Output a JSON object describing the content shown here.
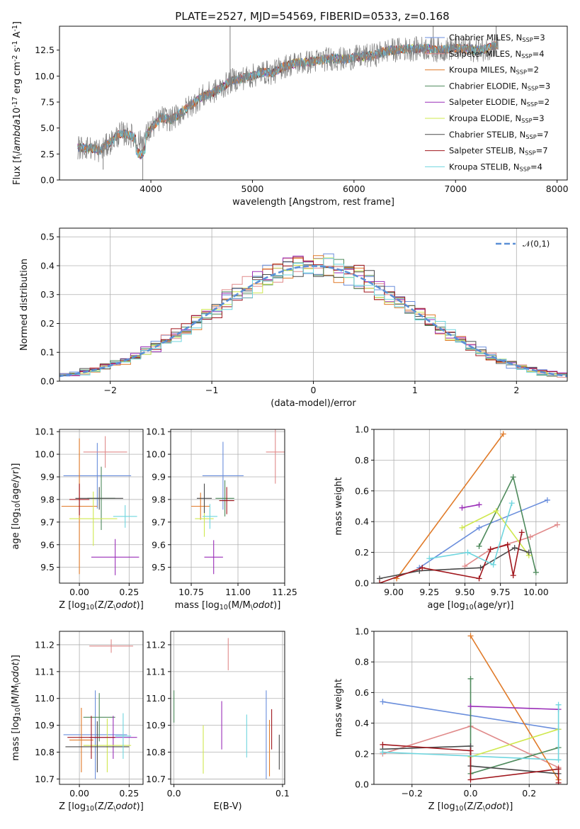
{
  "figure": {
    "title": "PLATE=2527, MJD=54569, FIBERID=0533, z=0.168"
  },
  "series_styles": [
    {
      "name": "Chabrier MILES, N$_{SSP}$=3",
      "label_html": "Chabrier MILES, N<sub>SSP</sub>=3",
      "color": "#6a8edc"
    },
    {
      "name": "Salpeter MILES, N$_{SSP}$=4",
      "label_html": "Salpeter MILES, N<sub>SSP</sub>=4",
      "color": "#e08a8a"
    },
    {
      "name": "Kroupa MILES, N$_{SSP}$=2",
      "label_html": "Kroupa MILES, N<sub>SSP</sub>=2",
      "color": "#e07a28"
    },
    {
      "name": "Chabrier ELODIE, N$_{SSP}$=3",
      "label_html": "Chabrier ELODIE, N<sub>SSP</sub>=3",
      "color": "#4e8a5c"
    },
    {
      "name": "Salpeter ELODIE, N$_{SSP}$=2",
      "label_html": "Salpeter ELODIE, N<sub>SSP</sub>=2",
      "color": "#9a2eb8"
    },
    {
      "name": "Kroupa ELODIE, N$_{SSP}$=3",
      "label_html": "Kroupa ELODIE, N<sub>SSP</sub>=3",
      "color": "#cfe84e"
    },
    {
      "name": "Chabrier STELIB, N$_{SSP}$=7",
      "label_html": "Chabrier STELIB, N<sub>SSP</sub>=7",
      "color": "#4a4a4a"
    },
    {
      "name": "Salpeter STELIB, N$_{SSP}$=7",
      "label_html": "Salpeter STELIB, N<sub>SSP</sub>=7",
      "color": "#a0161c"
    },
    {
      "name": "Kroupa STELIB, N$_{SSP}$=4",
      "label_html": "Kroupa STELIB, N<sub>SSP</sub>=4",
      "color": "#6fd6df"
    }
  ],
  "chart_data": [
    {
      "id": "spectrum",
      "type": "line",
      "title": "PLATE=2527, MJD=54569, FIBERID=0533, z=0.168",
      "xlabel": "wavelength [Angstrom, rest frame]",
      "ylabel": "Flux [f$_\\lambda$10$^{-17}$ erg cm$^{-2}$ s$^{-1}$ A$^{-1}$]",
      "xlim": [
        3100,
        8100
      ],
      "ylim": [
        0,
        14.8
      ],
      "xticks": [
        4000,
        5000,
        6000,
        7000,
        8000
      ],
      "yticks": [
        0.0,
        2.5,
        5.0,
        7.5,
        10.0,
        12.5
      ],
      "data_color": "#808080",
      "data_label": "",
      "spikes": [
        {
          "x": 4780,
          "y": 14.8
        },
        {
          "x": 6780,
          "y": 14.8
        },
        {
          "x": 7400,
          "y": 14.8
        },
        {
          "x": 3530,
          "y": 1.0
        },
        {
          "x": 3920,
          "y": 0.0
        }
      ],
      "continuum": [
        [
          3280,
          3.1
        ],
        [
          3400,
          3.1
        ],
        [
          3500,
          2.8
        ],
        [
          3600,
          3.6
        ],
        [
          3700,
          4.5
        ],
        [
          3800,
          4.3
        ],
        [
          3900,
          3.6
        ],
        [
          4000,
          4.9
        ],
        [
          4100,
          6.0
        ],
        [
          4200,
          5.8
        ],
        [
          4300,
          6.5
        ],
        [
          4400,
          7.2
        ],
        [
          4500,
          8.0
        ],
        [
          4600,
          8.4
        ],
        [
          4700,
          8.9
        ],
        [
          4800,
          9.6
        ],
        [
          4900,
          9.8
        ],
        [
          5000,
          10.0
        ],
        [
          5100,
          10.4
        ],
        [
          5200,
          10.3
        ],
        [
          5300,
          10.9
        ],
        [
          5400,
          11.2
        ],
        [
          5500,
          11.3
        ],
        [
          5600,
          11.4
        ],
        [
          5700,
          11.6
        ],
        [
          5800,
          11.7
        ],
        [
          5900,
          11.6
        ],
        [
          6000,
          11.8
        ],
        [
          6100,
          11.9
        ],
        [
          6200,
          12.0
        ],
        [
          6300,
          12.4
        ],
        [
          6400,
          12.5
        ],
        [
          6500,
          12.6
        ],
        [
          6600,
          12.6
        ],
        [
          6700,
          12.7
        ],
        [
          6800,
          12.5
        ],
        [
          6900,
          12.6
        ],
        [
          7000,
          12.7
        ],
        [
          7100,
          12.6
        ],
        [
          7200,
          12.5
        ],
        [
          7300,
          12.6
        ],
        [
          7400,
          13.0
        ]
      ],
      "legend_position": "right"
    },
    {
      "id": "residuals",
      "type": "line",
      "xlabel": "(data-model)/error",
      "ylabel": "Normed distribution",
      "xlim": [
        -2.5,
        2.5
      ],
      "ylim": [
        0,
        0.53
      ],
      "xticks": [
        -2,
        -1,
        0,
        1,
        2
      ],
      "yticks": [
        0.0,
        0.1,
        0.2,
        0.3,
        0.4,
        0.5
      ],
      "legend": "$\\mathcal{N}(0,1)$",
      "legend_position": "top-right",
      "gaussian_color": "#5b8fd6",
      "bin_width": 0.1,
      "grid": true
    },
    {
      "id": "age-vs-Z",
      "type": "scatter",
      "xlabel": "Z [log$_{10}$(Z/Z$_\\odot$)]",
      "ylabel": "age  [log$_{10}$(age/yr)]",
      "xlim": [
        -0.1,
        0.32
      ],
      "ylim": [
        9.43,
        10.11
      ],
      "xticks": [
        0.0,
        0.25
      ],
      "yticks": [
        9.5,
        9.6,
        9.7,
        9.8,
        9.9,
        10.0,
        10.1
      ],
      "points": [
        {
          "x": 0.09,
          "y": 9.905,
          "xerr": 0.17,
          "yerr": 0.145,
          "c": 0
        },
        {
          "x": 0.13,
          "y": 10.01,
          "xerr": 0.11,
          "yerr": 0.07,
          "c": 1
        },
        {
          "x": 0.0,
          "y": 9.77,
          "xerr": 0.09,
          "yerr": 0.3,
          "c": 2
        },
        {
          "x": 0.11,
          "y": 9.805,
          "xerr": 0.07,
          "yerr": 0.14,
          "c": 3
        },
        {
          "x": 0.18,
          "y": 9.545,
          "xerr": 0.12,
          "yerr": 0.08,
          "c": 4
        },
        {
          "x": 0.07,
          "y": 9.715,
          "xerr": 0.12,
          "yerr": 0.12,
          "c": 5
        },
        {
          "x": 0.1,
          "y": 9.805,
          "xerr": 0.12,
          "yerr": 0.05,
          "c": 6
        },
        {
          "x": 0.0,
          "y": 9.8,
          "xerr": 0.05,
          "yerr": 0.07,
          "c": 7
        },
        {
          "x": 0.23,
          "y": 9.725,
          "xerr": 0.06,
          "yerr": 0.05,
          "c": 8
        }
      ]
    },
    {
      "id": "age-vs-mass",
      "type": "scatter",
      "xlabel": "mass [log$_{10}$(M/M$_\\odot$)]",
      "ylabel": "",
      "xlim": [
        10.64,
        11.25
      ],
      "ylim": [
        9.43,
        10.11
      ],
      "xticks": [
        10.75,
        11.0,
        11.25
      ],
      "yticks": [
        9.5,
        9.6,
        9.7,
        9.8,
        9.9,
        10.0,
        10.1
      ],
      "points": [
        {
          "x": 10.92,
          "y": 9.905,
          "xerr": 0.11,
          "yerr": 0.15,
          "c": 0
        },
        {
          "x": 11.2,
          "y": 10.01,
          "xerr": 0.05,
          "yerr": 0.14,
          "c": 1
        },
        {
          "x": 10.8,
          "y": 9.77,
          "xerr": 0.05,
          "yerr": 0.06,
          "c": 2
        },
        {
          "x": 10.93,
          "y": 9.805,
          "xerr": 0.05,
          "yerr": 0.08,
          "c": 3
        },
        {
          "x": 10.87,
          "y": 9.545,
          "xerr": 0.05,
          "yerr": 0.075,
          "c": 4
        },
        {
          "x": 10.82,
          "y": 9.715,
          "xerr": 0.05,
          "yerr": 0.08,
          "c": 5
        },
        {
          "x": 10.82,
          "y": 9.805,
          "xerr": 0.04,
          "yerr": 0.065,
          "c": 6
        },
        {
          "x": 10.94,
          "y": 9.795,
          "xerr": 0.04,
          "yerr": 0.06,
          "c": 7
        },
        {
          "x": 10.85,
          "y": 9.725,
          "xerr": 0.04,
          "yerr": 0.055,
          "c": 8
        }
      ]
    },
    {
      "id": "massweight-vs-age",
      "type": "line",
      "xlabel": "age  [log$_{10}$(age/yr)]",
      "ylabel": "mass weight",
      "xlim": [
        8.86,
        10.22
      ],
      "ylim": [
        0,
        1.0
      ],
      "xticks": [
        9.0,
        9.25,
        9.5,
        9.75,
        10.0
      ],
      "yticks": [
        0.0,
        0.2,
        0.4,
        0.6,
        0.8,
        1.0
      ],
      "series": [
        {
          "c": 0,
          "x": [
            9.18,
            9.6,
            10.08
          ],
          "y": [
            0.1,
            0.36,
            0.54
          ]
        },
        {
          "c": 1,
          "x": [
            9.5,
            9.68,
            9.96,
            10.15
          ],
          "y": [
            0.11,
            0.22,
            0.3,
            0.38
          ]
        },
        {
          "c": 2,
          "x": [
            9.02,
            9.77
          ],
          "y": [
            0.03,
            0.97
          ]
        },
        {
          "c": 3,
          "x": [
            9.6,
            9.84,
            10.0
          ],
          "y": [
            0.24,
            0.69,
            0.07
          ]
        },
        {
          "c": 4,
          "x": [
            9.48,
            9.6
          ],
          "y": [
            0.49,
            0.51
          ]
        },
        {
          "c": 5,
          "x": [
            9.48,
            9.72,
            9.95
          ],
          "y": [
            0.36,
            0.47,
            0.18
          ]
        },
        {
          "c": 6,
          "x": [
            8.9,
            9.18,
            9.61,
            9.85,
            9.95
          ],
          "y": [
            0.03,
            0.08,
            0.1,
            0.23,
            0.2
          ]
        },
        {
          "c": 7,
          "x": [
            8.9,
            9.2,
            9.6,
            9.68,
            9.8,
            9.84,
            9.9
          ],
          "y": [
            0.0,
            0.1,
            0.03,
            0.22,
            0.25,
            0.05,
            0.33
          ]
        },
        {
          "c": 8,
          "x": [
            9.25,
            9.52,
            9.7,
            9.83
          ],
          "y": [
            0.16,
            0.2,
            0.12,
            0.52
          ]
        }
      ]
    },
    {
      "id": "mass-vs-Z",
      "type": "scatter",
      "xlabel": "Z [log$_{10}$(Z/Z$_\\odot$)]",
      "ylabel": "mass [log$_{10}$(M/M$_\\odot$)]",
      "xlim": [
        -0.1,
        0.32
      ],
      "ylim": [
        10.68,
        11.25
      ],
      "xticks": [
        0.0,
        0.25
      ],
      "yticks": [
        10.7,
        10.8,
        10.9,
        11.0,
        11.1,
        11.2
      ],
      "points": [
        {
          "x": 0.08,
          "y": 10.865,
          "xerr": 0.16,
          "yerr": 0.165,
          "c": 0
        },
        {
          "x": 0.16,
          "y": 11.195,
          "xerr": 0.11,
          "yerr": 0.025,
          "c": 1
        },
        {
          "x": 0.01,
          "y": 10.845,
          "xerr": 0.06,
          "yerr": 0.12,
          "c": 2
        },
        {
          "x": 0.1,
          "y": 10.93,
          "xerr": 0.08,
          "yerr": 0.09,
          "c": 3
        },
        {
          "x": 0.17,
          "y": 10.855,
          "xerr": 0.12,
          "yerr": 0.08,
          "c": 4
        },
        {
          "x": 0.14,
          "y": 10.825,
          "xerr": 0.12,
          "yerr": 0.1,
          "c": 5
        },
        {
          "x": 0.09,
          "y": 10.82,
          "xerr": 0.16,
          "yerr": 0.095,
          "c": 6
        },
        {
          "x": 0.06,
          "y": 10.855,
          "xerr": 0.12,
          "yerr": 0.08,
          "c": 7
        },
        {
          "x": 0.22,
          "y": 10.86,
          "xerr": 0.04,
          "yerr": 0.085,
          "c": 8
        }
      ]
    },
    {
      "id": "mass-vs-EBV",
      "type": "scatter",
      "xlabel": "E(B-V)",
      "ylabel": "",
      "xlim": [
        -0.003,
        0.102
      ],
      "ylim": [
        10.68,
        11.25
      ],
      "xticks": [
        0.0,
        0.1
      ],
      "yticks": [
        10.7,
        10.8,
        10.9,
        11.0,
        11.1,
        11.2
      ],
      "points": [
        {
          "x": 0.085,
          "y": 10.865,
          "xerr": 0,
          "yerr": 0.165,
          "c": 0
        },
        {
          "x": 0.05,
          "y": 11.165,
          "xerr": 0,
          "yerr": 0.06,
          "c": 1
        },
        {
          "x": 0.088,
          "y": 10.815,
          "xerr": 0,
          "yerr": 0.105,
          "c": 2
        },
        {
          "x": 0.0,
          "y": 10.97,
          "xerr": 0,
          "yerr": 0.06,
          "c": 3
        },
        {
          "x": 0.044,
          "y": 10.9,
          "xerr": 0,
          "yerr": 0.09,
          "c": 4
        },
        {
          "x": 0.027,
          "y": 10.81,
          "xerr": 0,
          "yerr": 0.09,
          "c": 5
        },
        {
          "x": 0.097,
          "y": 10.8,
          "xerr": 0,
          "yerr": 0.065,
          "c": 6
        },
        {
          "x": 0.09,
          "y": 10.885,
          "xerr": 0,
          "yerr": 0.075,
          "c": 7
        },
        {
          "x": 0.067,
          "y": 10.86,
          "xerr": 0,
          "yerr": 0.08,
          "c": 8
        }
      ]
    },
    {
      "id": "massweight-vs-Z",
      "type": "line",
      "xlabel": "Z [log$_{10}$(Z/Z$_\\odot$)]",
      "ylabel": "mass weight",
      "xlim": [
        -0.33,
        0.33
      ],
      "ylim": [
        0,
        1.0
      ],
      "xticks": [
        -0.2,
        0.0,
        0.2
      ],
      "yticks": [
        0.0,
        0.2,
        0.4,
        0.6,
        0.8,
        1.0
      ],
      "series": [
        {
          "c": 0,
          "x": [
            -0.3,
            0.3
          ],
          "y": [
            0.54,
            0.36
          ]
        },
        {
          "c": 1,
          "x": [
            -0.3,
            0.0,
            0.3
          ],
          "y": [
            0.2,
            0.38,
            0.11
          ]
        },
        {
          "c": 2,
          "x": [
            0.0,
            0.3
          ],
          "y": [
            0.97,
            0.03
          ]
        },
        {
          "c": 3,
          "x": [
            0.0,
            0.0,
            0.3
          ],
          "y": [
            0.69,
            0.07,
            0.24
          ]
        },
        {
          "c": 4,
          "x": [
            0.0,
            0.3
          ],
          "y": [
            0.51,
            0.49
          ]
        },
        {
          "c": 5,
          "x": [
            0.0,
            0.3
          ],
          "y": [
            0.18,
            0.36
          ]
        },
        {
          "c": 6,
          "x": [
            -0.3,
            0.0,
            0.0,
            0.3
          ],
          "y": [
            0.23,
            0.25,
            0.12,
            0.07
          ]
        },
        {
          "c": 7,
          "x": [
            -0.3,
            0.0,
            0.0,
            0.3,
            0.3
          ],
          "y": [
            0.26,
            0.22,
            0.03,
            0.1,
            0.01
          ]
        },
        {
          "c": 8,
          "x": [
            -0.3,
            0.3,
            0.3
          ],
          "y": [
            0.21,
            0.16,
            0.52
          ]
        }
      ]
    }
  ]
}
